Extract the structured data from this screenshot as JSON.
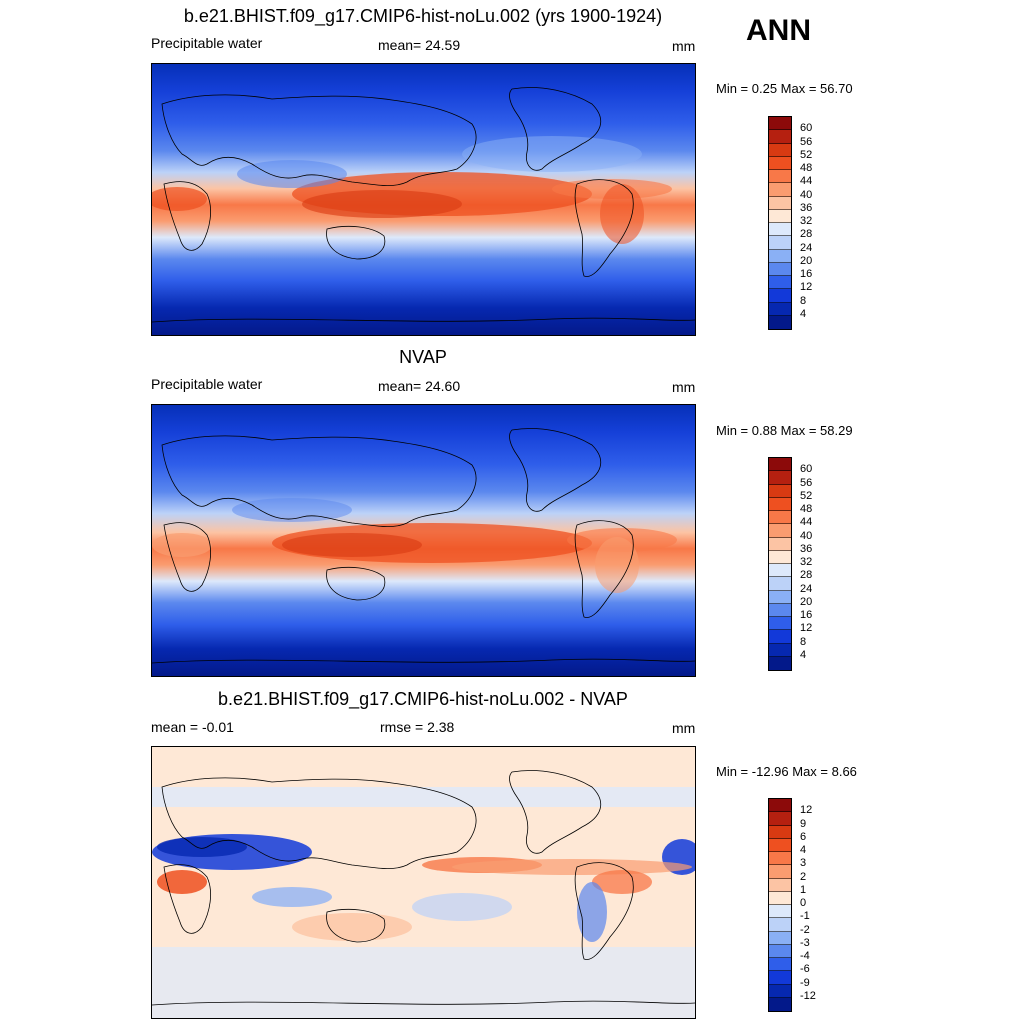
{
  "corner_label": "ANN",
  "panels": [
    {
      "title": "b.e21.BHIST.f09_g17.CMIP6-hist-noLu.002 (yrs 1900-1924)",
      "left_label": "Precipitable water",
      "center_label": "mean=  24.59",
      "units": "mm",
      "minmax": "Min =   0.25 Max =  56.70",
      "colorbar_labels": [
        "60",
        "56",
        "52",
        "48",
        "44",
        "40",
        "36",
        "32",
        "28",
        "24",
        "20",
        "16",
        "12",
        "8",
        "4"
      ],
      "colorbar_colors": [
        "#8c0a0a",
        "#b52010",
        "#d83a12",
        "#ee5020",
        "#f87848",
        "#fa9c70",
        "#fcc4a4",
        "#fee8d6",
        "#dde9fb",
        "#bcd2f8",
        "#8ab0f5",
        "#5b88ee",
        "#2f5eea",
        "#1239d9",
        "#0628b0",
        "#03198a"
      ]
    },
    {
      "title": "NVAP",
      "left_label": "Precipitable water",
      "center_label": "mean=  24.60",
      "units": "mm",
      "minmax": "Min =   0.88 Max =  58.29",
      "colorbar_labels": [
        "60",
        "56",
        "52",
        "48",
        "44",
        "40",
        "36",
        "32",
        "28",
        "24",
        "20",
        "16",
        "12",
        "8",
        "4"
      ],
      "colorbar_colors": [
        "#8c0a0a",
        "#b52010",
        "#d83a12",
        "#ee5020",
        "#f87848",
        "#fa9c70",
        "#fcc4a4",
        "#fee8d6",
        "#dde9fb",
        "#bcd2f8",
        "#8ab0f5",
        "#5b88ee",
        "#2f5eea",
        "#1239d9",
        "#0628b0",
        "#03198a"
      ]
    },
    {
      "title": "b.e21.BHIST.f09_g17.CMIP6-hist-noLu.002 - NVAP",
      "left_label": "mean =  -0.01",
      "center_label": "rmse =   2.38",
      "units": "mm",
      "minmax": "Min = -12.96 Max =   8.66",
      "colorbar_labels": [
        "12",
        "9",
        "6",
        "4",
        "3",
        "2",
        "1",
        "0",
        "-1",
        "-2",
        "-3",
        "-4",
        "-6",
        "-9",
        "-12"
      ],
      "colorbar_colors": [
        "#8c0a0a",
        "#b52010",
        "#d83a12",
        "#ee5020",
        "#f87848",
        "#fa9c70",
        "#fcc4a4",
        "#fee8d6",
        "#dde9fb",
        "#bcd2f8",
        "#8ab0f5",
        "#5b88ee",
        "#2f5eea",
        "#1239d9",
        "#0628b0",
        "#03198a"
      ]
    }
  ]
}
